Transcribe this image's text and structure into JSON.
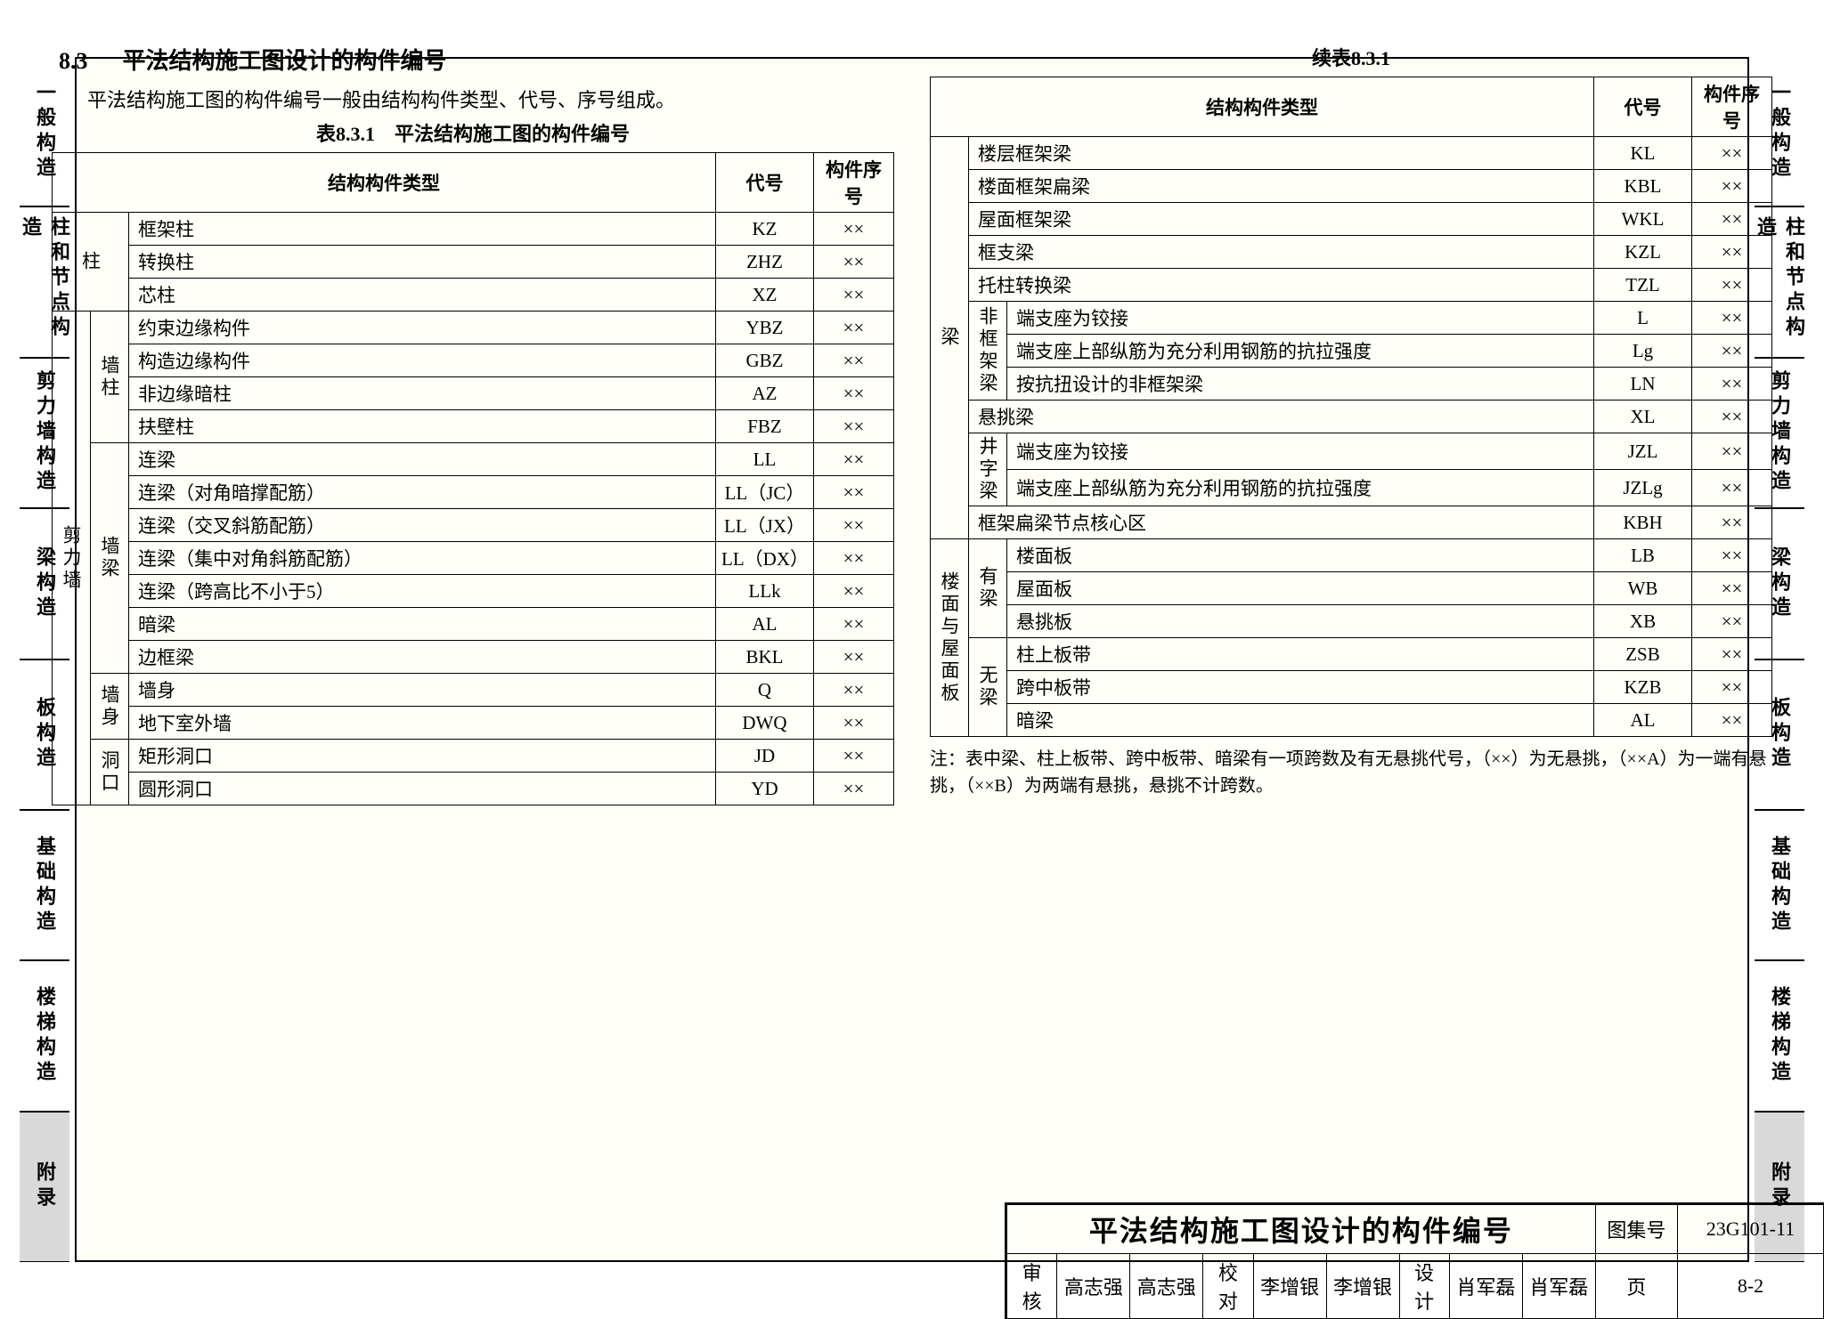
{
  "side_tabs": [
    {
      "label": "一般构造"
    },
    {
      "label": "柱和节点构造",
      "twoCol": [
        "柱和节",
        "构造点"
      ]
    },
    {
      "label": "剪力墙构造",
      "twoCol": [
        "剪力",
        "构造墙"
      ]
    },
    {
      "label": "梁构造"
    },
    {
      "label": "板构造"
    },
    {
      "label": "基础构造"
    },
    {
      "label": "楼梯构造"
    },
    {
      "label": "附录",
      "filled": true
    }
  ],
  "section": {
    "number": "8.3",
    "title": "平法结构施工图设计的构件编号",
    "intro": "平法结构施工图的构件编号一般由结构构件类型、代号、序号组成。",
    "table1_caption": "表8.3.1　平法结构施工图的构件编号",
    "table2_caption": "续表8.3.1"
  },
  "headers": {
    "type": "结构构件类型",
    "code": "代号",
    "seq": "构件序号"
  },
  "seq_mark": "××",
  "table1": {
    "groups": [
      {
        "g1": "柱",
        "g2": null,
        "rows": [
          {
            "name": "框架柱",
            "code": "KZ"
          },
          {
            "name": "转换柱",
            "code": "ZHZ"
          },
          {
            "name": "芯柱",
            "code": "XZ"
          }
        ]
      },
      {
        "g1": "剪力墙",
        "subgroups": [
          {
            "g2": "墙柱",
            "rows": [
              {
                "name": "约束边缘构件",
                "code": "YBZ"
              },
              {
                "name": "构造边缘构件",
                "code": "GBZ"
              },
              {
                "name": "非边缘暗柱",
                "code": "AZ"
              },
              {
                "name": "扶壁柱",
                "code": "FBZ"
              }
            ]
          },
          {
            "g2": "墙梁",
            "rows": [
              {
                "name": "连梁",
                "code": "LL"
              },
              {
                "name": "连梁（对角暗撑配筋）",
                "code": "LL（JC）"
              },
              {
                "name": "连梁（交叉斜筋配筋）",
                "code": "LL（JX）"
              },
              {
                "name": "连梁（集中对角斜筋配筋）",
                "code": "LL（DX）"
              },
              {
                "name": "连梁（跨高比不小于5）",
                "code": "LLk"
              },
              {
                "name": "暗梁",
                "code": "AL"
              },
              {
                "name": "边框梁",
                "code": "BKL"
              }
            ]
          },
          {
            "g2": "墙身",
            "rows": [
              {
                "name": "墙身",
                "code": "Q"
              },
              {
                "name": "地下室外墙",
                "code": "DWQ"
              }
            ]
          },
          {
            "g2": "洞口",
            "rows": [
              {
                "name": "矩形洞口",
                "code": "JD"
              },
              {
                "name": "圆形洞口",
                "code": "YD"
              }
            ]
          }
        ]
      }
    ]
  },
  "table2": {
    "groups": [
      {
        "g1": "梁",
        "subgroups": [
          {
            "g2": null,
            "rows": [
              {
                "name": "楼层框架梁",
                "code": "KL"
              },
              {
                "name": "楼面框架扁梁",
                "code": "KBL"
              },
              {
                "name": "屋面框架梁",
                "code": "WKL"
              },
              {
                "name": "框支梁",
                "code": "KZL"
              },
              {
                "name": "托柱转换梁",
                "code": "TZL"
              }
            ]
          },
          {
            "g2": "非框架梁",
            "rows": [
              {
                "name": "端支座为铰接",
                "code": "L"
              },
              {
                "name": "端支座上部纵筋为充分利用钢筋的抗拉强度",
                "code": "Lg"
              },
              {
                "name": "按抗扭设计的非框架梁",
                "code": "LN"
              }
            ]
          },
          {
            "g2": null,
            "rows": [
              {
                "name": "悬挑梁",
                "code": "XL"
              }
            ]
          },
          {
            "g2": "井字梁",
            "rows": [
              {
                "name": "端支座为铰接",
                "code": "JZL"
              },
              {
                "name": "端支座上部纵筋为充分利用钢筋的抗拉强度",
                "code": "JZLg"
              }
            ]
          },
          {
            "g2": null,
            "rows": [
              {
                "name": "框架扁梁节点核心区",
                "code": "KBH"
              }
            ]
          }
        ]
      },
      {
        "g1": "楼面与屋面板",
        "subgroups": [
          {
            "g2": "有梁",
            "rows": [
              {
                "name": "楼面板",
                "code": "LB"
              },
              {
                "name": "屋面板",
                "code": "WB"
              },
              {
                "name": "悬挑板",
                "code": "XB"
              }
            ]
          },
          {
            "g2": "无梁",
            "rows": [
              {
                "name": "柱上板带",
                "code": "ZSB"
              },
              {
                "name": "跨中板带",
                "code": "KZB"
              },
              {
                "name": "暗梁",
                "code": "AL"
              }
            ]
          }
        ]
      }
    ]
  },
  "note": "注：表中梁、柱上板带、跨中板带、暗梁有一项跨数及有无悬挑代号，（××）为无悬挑，（××A）为一端有悬挑，（××B）为两端有悬挑，悬挑不计跨数。",
  "title_block": {
    "main": "平法结构施工图设计的构件编号",
    "set_label": "图集号",
    "set_value": "23G101-11",
    "row2": {
      "c1l": "审核",
      "c1v": "高志强",
      "c1s": "高志强",
      "c2l": "校对",
      "c2v": "李增银",
      "c2s": "李增银",
      "c3l": "设计",
      "c3v": "肖军磊",
      "c3s": "肖军磊",
      "pl": "页",
      "pv": "8-2"
    }
  }
}
